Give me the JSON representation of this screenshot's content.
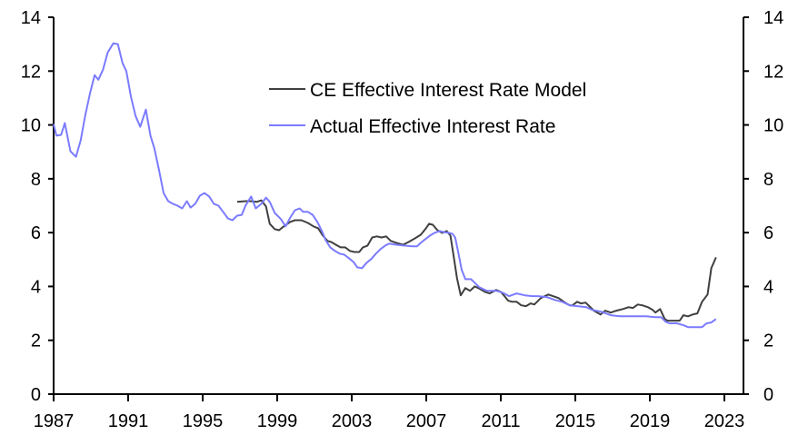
{
  "chart_data": {
    "type": "line",
    "title": "",
    "xlabel": "",
    "ylabel": "",
    "xlim": [
      1987,
      2024
    ],
    "ylim": [
      0,
      14
    ],
    "x_ticks": [
      "1987",
      "1991",
      "1995",
      "1999",
      "2003",
      "2007",
      "2011",
      "2015",
      "2019",
      "2023"
    ],
    "y_ticks_left": [
      "0",
      "2",
      "4",
      "6",
      "8",
      "10",
      "12",
      "14"
    ],
    "y_ticks_right": [
      "0",
      "2",
      "4",
      "6",
      "8",
      "10",
      "12",
      "14"
    ],
    "grid": false,
    "legend_position": "top-center",
    "series": [
      {
        "name": "CE Effective Interest Rate Model",
        "color": "#404040",
        "points": [
          [
            1996.85,
            7.14
          ],
          [
            1997.3,
            7.17
          ],
          [
            1997.55,
            7.17
          ],
          [
            1997.9,
            7.14
          ],
          [
            1998.15,
            7.2
          ],
          [
            1998.4,
            6.97
          ],
          [
            1998.6,
            6.33
          ],
          [
            1998.87,
            6.13
          ],
          [
            1999.1,
            6.09
          ],
          [
            1999.35,
            6.23
          ],
          [
            1999.7,
            6.4
          ],
          [
            1999.95,
            6.46
          ],
          [
            2000.3,
            6.46
          ],
          [
            2000.65,
            6.36
          ],
          [
            2000.95,
            6.23
          ],
          [
            2001.2,
            6.16
          ],
          [
            2001.45,
            5.89
          ],
          [
            2001.7,
            5.69
          ],
          [
            2001.9,
            5.65
          ],
          [
            2002.15,
            5.55
          ],
          [
            2002.4,
            5.45
          ],
          [
            2002.65,
            5.45
          ],
          [
            2002.9,
            5.32
          ],
          [
            2003.15,
            5.28
          ],
          [
            2003.4,
            5.28
          ],
          [
            2003.6,
            5.45
          ],
          [
            2003.85,
            5.52
          ],
          [
            2004.1,
            5.82
          ],
          [
            2004.35,
            5.86
          ],
          [
            2004.6,
            5.82
          ],
          [
            2004.85,
            5.86
          ],
          [
            2005.1,
            5.69
          ],
          [
            2005.4,
            5.62
          ],
          [
            2005.75,
            5.55
          ],
          [
            2006.05,
            5.65
          ],
          [
            2006.4,
            5.79
          ],
          [
            2006.7,
            5.92
          ],
          [
            2006.95,
            6.13
          ],
          [
            2007.15,
            6.33
          ],
          [
            2007.35,
            6.29
          ],
          [
            2007.6,
            6.09
          ],
          [
            2007.85,
            5.99
          ],
          [
            2008.1,
            6.06
          ],
          [
            2008.3,
            5.89
          ],
          [
            2008.45,
            5.22
          ],
          [
            2008.65,
            4.31
          ],
          [
            2008.85,
            3.67
          ],
          [
            2009.1,
            3.94
          ],
          [
            2009.35,
            3.84
          ],
          [
            2009.6,
            4.0
          ],
          [
            2009.9,
            3.9
          ],
          [
            2010.15,
            3.8
          ],
          [
            2010.4,
            3.74
          ],
          [
            2010.75,
            3.87
          ],
          [
            2011.0,
            3.8
          ],
          [
            2011.2,
            3.64
          ],
          [
            2011.4,
            3.47
          ],
          [
            2011.6,
            3.43
          ],
          [
            2011.85,
            3.43
          ],
          [
            2012.1,
            3.3
          ],
          [
            2012.35,
            3.27
          ],
          [
            2012.6,
            3.37
          ],
          [
            2012.8,
            3.33
          ],
          [
            2013.15,
            3.57
          ],
          [
            2013.55,
            3.7
          ],
          [
            2013.8,
            3.64
          ],
          [
            2014.1,
            3.57
          ],
          [
            2014.45,
            3.4
          ],
          [
            2014.7,
            3.3
          ],
          [
            2014.85,
            3.3
          ],
          [
            2015.1,
            3.43
          ],
          [
            2015.3,
            3.37
          ],
          [
            2015.55,
            3.4
          ],
          [
            2015.75,
            3.27
          ],
          [
            2016.0,
            3.1
          ],
          [
            2016.35,
            2.96
          ],
          [
            2016.6,
            3.1
          ],
          [
            2016.9,
            3.03
          ],
          [
            2017.2,
            3.1
          ],
          [
            2017.55,
            3.16
          ],
          [
            2017.85,
            3.23
          ],
          [
            2018.1,
            3.2
          ],
          [
            2018.35,
            3.33
          ],
          [
            2018.6,
            3.3
          ],
          [
            2018.9,
            3.23
          ],
          [
            2019.15,
            3.13
          ],
          [
            2019.3,
            3.03
          ],
          [
            2019.55,
            3.16
          ],
          [
            2019.8,
            2.79
          ],
          [
            2019.95,
            2.73
          ],
          [
            2020.6,
            2.73
          ],
          [
            2020.8,
            2.93
          ],
          [
            2021.05,
            2.89
          ],
          [
            2021.3,
            2.96
          ],
          [
            2021.55,
            3.0
          ],
          [
            2021.8,
            3.43
          ],
          [
            2022.1,
            3.7
          ],
          [
            2022.3,
            4.68
          ],
          [
            2022.55,
            5.08
          ]
        ]
      },
      {
        "name": "Actual Effective Interest Rate",
        "color": "#7b7bff",
        "points": [
          [
            1987.0,
            10.03
          ],
          [
            1987.15,
            9.6
          ],
          [
            1987.4,
            9.63
          ],
          [
            1987.6,
            10.07
          ],
          [
            1987.9,
            9.02
          ],
          [
            1988.2,
            8.82
          ],
          [
            1988.45,
            9.42
          ],
          [
            1988.7,
            10.37
          ],
          [
            1988.95,
            11.17
          ],
          [
            1989.2,
            11.85
          ],
          [
            1989.4,
            11.68
          ],
          [
            1989.65,
            12.05
          ],
          [
            1989.9,
            12.69
          ],
          [
            1990.2,
            13.03
          ],
          [
            1990.45,
            13.0
          ],
          [
            1990.7,
            12.29
          ],
          [
            1990.9,
            12.0
          ],
          [
            1991.15,
            11.04
          ],
          [
            1991.4,
            10.33
          ],
          [
            1991.65,
            9.93
          ],
          [
            1991.95,
            10.57
          ],
          [
            1992.2,
            9.59
          ],
          [
            1992.4,
            9.15
          ],
          [
            1992.65,
            8.35
          ],
          [
            1992.9,
            7.47
          ],
          [
            1993.15,
            7.17
          ],
          [
            1993.4,
            7.07
          ],
          [
            1993.65,
            7.0
          ],
          [
            1993.9,
            6.9
          ],
          [
            1994.15,
            7.17
          ],
          [
            1994.35,
            6.93
          ],
          [
            1994.6,
            7.07
          ],
          [
            1994.85,
            7.37
          ],
          [
            1995.1,
            7.47
          ],
          [
            1995.35,
            7.34
          ],
          [
            1995.6,
            7.07
          ],
          [
            1995.85,
            7.0
          ],
          [
            1996.1,
            6.77
          ],
          [
            1996.35,
            6.53
          ],
          [
            1996.6,
            6.46
          ],
          [
            1996.85,
            6.63
          ],
          [
            1997.1,
            6.66
          ],
          [
            1997.3,
            7.0
          ],
          [
            1997.6,
            7.34
          ],
          [
            1997.85,
            6.9
          ],
          [
            1998.15,
            7.07
          ],
          [
            1998.4,
            7.3
          ],
          [
            1998.6,
            7.14
          ],
          [
            1998.87,
            6.73
          ],
          [
            1999.2,
            6.5
          ],
          [
            1999.45,
            6.23
          ],
          [
            1999.7,
            6.56
          ],
          [
            1999.95,
            6.83
          ],
          [
            2000.2,
            6.9
          ],
          [
            2000.4,
            6.77
          ],
          [
            2000.65,
            6.77
          ],
          [
            2000.9,
            6.66
          ],
          [
            2001.15,
            6.4
          ],
          [
            2001.4,
            6.06
          ],
          [
            2001.6,
            5.72
          ],
          [
            2001.85,
            5.45
          ],
          [
            2002.1,
            5.32
          ],
          [
            2002.35,
            5.22
          ],
          [
            2002.6,
            5.18
          ],
          [
            2002.85,
            5.05
          ],
          [
            2003.1,
            4.91
          ],
          [
            2003.3,
            4.71
          ],
          [
            2003.55,
            4.68
          ],
          [
            2003.8,
            4.88
          ],
          [
            2004.05,
            5.02
          ],
          [
            2004.3,
            5.22
          ],
          [
            2004.55,
            5.39
          ],
          [
            2004.8,
            5.52
          ],
          [
            2005.0,
            5.59
          ],
          [
            2005.4,
            5.55
          ],
          [
            2005.8,
            5.52
          ],
          [
            2006.25,
            5.49
          ],
          [
            2006.5,
            5.49
          ],
          [
            2006.7,
            5.62
          ],
          [
            2006.95,
            5.76
          ],
          [
            2007.2,
            5.89
          ],
          [
            2007.45,
            5.99
          ],
          [
            2007.7,
            6.06
          ],
          [
            2007.95,
            6.02
          ],
          [
            2008.2,
            5.99
          ],
          [
            2008.4,
            5.96
          ],
          [
            2008.55,
            5.82
          ],
          [
            2008.7,
            5.32
          ],
          [
            2008.9,
            4.61
          ],
          [
            2009.1,
            4.27
          ],
          [
            2009.4,
            4.27
          ],
          [
            2009.6,
            4.14
          ],
          [
            2009.85,
            3.97
          ],
          [
            2010.15,
            3.87
          ],
          [
            2010.25,
            3.84
          ],
          [
            2010.75,
            3.84
          ],
          [
            2011.1,
            3.77
          ],
          [
            2011.45,
            3.64
          ],
          [
            2011.85,
            3.74
          ],
          [
            2012.3,
            3.67
          ],
          [
            2012.7,
            3.64
          ],
          [
            2013.0,
            3.64
          ],
          [
            2013.5,
            3.6
          ],
          [
            2013.9,
            3.5
          ],
          [
            2014.3,
            3.43
          ],
          [
            2014.7,
            3.3
          ],
          [
            2015.1,
            3.27
          ],
          [
            2015.6,
            3.23
          ],
          [
            2015.9,
            3.13
          ],
          [
            2016.4,
            3.06
          ],
          [
            2016.9,
            2.93
          ],
          [
            2017.4,
            2.89
          ],
          [
            2017.85,
            2.89
          ],
          [
            2018.35,
            2.89
          ],
          [
            2018.8,
            2.89
          ],
          [
            2019.3,
            2.86
          ],
          [
            2019.6,
            2.86
          ],
          [
            2019.85,
            2.69
          ],
          [
            2020.05,
            2.63
          ],
          [
            2020.45,
            2.63
          ],
          [
            2020.8,
            2.56
          ],
          [
            2021.05,
            2.49
          ],
          [
            2021.8,
            2.49
          ],
          [
            2022.05,
            2.63
          ],
          [
            2022.3,
            2.66
          ],
          [
            2022.55,
            2.79
          ]
        ]
      }
    ]
  }
}
